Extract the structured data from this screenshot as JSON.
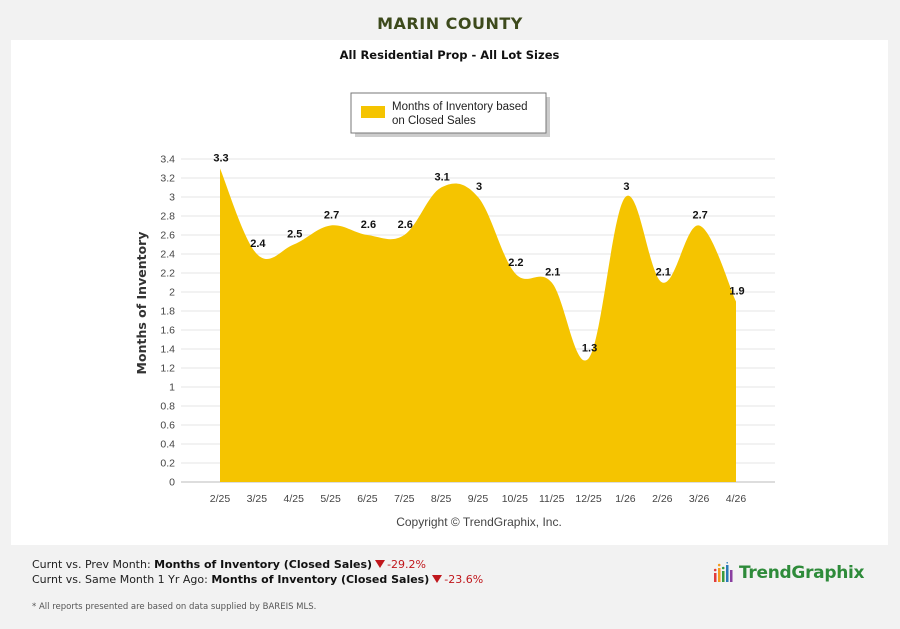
{
  "header": {
    "title": "MARIN COUNTY"
  },
  "colors": {
    "area": "#f5c400",
    "title": "#3d4a1c",
    "down": "#c0171c",
    "brand": "#2e8b3a"
  },
  "chart_data": {
    "type": "area",
    "title": "All Residential Prop - All Lot Sizes",
    "ylabel": "Months of Inventory",
    "xlabel": "",
    "categories": [
      "2/25",
      "3/25",
      "4/25",
      "5/25",
      "6/25",
      "7/25",
      "8/25",
      "9/25",
      "10/25",
      "11/25",
      "12/25",
      "1/26",
      "2/26",
      "3/26",
      "4/26"
    ],
    "series": [
      {
        "name": "Months of Inventory based on Closed Sales",
        "values": [
          3.3,
          2.4,
          2.5,
          2.7,
          2.6,
          2.6,
          3.1,
          3,
          2.2,
          2.1,
          1.3,
          3,
          2.1,
          2.7,
          1.9
        ]
      }
    ],
    "data_labels": [
      "3.3",
      "2.4",
      "2.5",
      "2.7",
      "2.6",
      "2.6",
      "3.1",
      "3",
      "2.2",
      "2.1",
      "1.3",
      "3",
      "2.1",
      "2.7",
      "1.9"
    ],
    "yticks": [
      "0",
      "0.2",
      "0.4",
      "0.6",
      "0.8",
      "1",
      "1.2",
      "1.4",
      "1.6",
      "1.8",
      "2",
      "2.2",
      "2.4",
      "2.6",
      "2.8",
      "3",
      "3.2",
      "3.4"
    ],
    "ylim": [
      0,
      3.4
    ],
    "grid": true,
    "legend_position": "top-center",
    "credit": "Copyright © TrendGraphix, Inc."
  },
  "footer": {
    "prev_month": {
      "label": "Curnt vs. Prev Month: ",
      "metric": "Months of Inventory (Closed Sales)",
      "pct": "-29.2%"
    },
    "year_ago": {
      "label": "Curnt vs. Same Month 1 Yr Ago: ",
      "metric": "Months of Inventory (Closed Sales)",
      "pct": "-23.6%"
    },
    "note": "* All reports presented are based on data supplied by BAREIS MLS."
  },
  "brand": {
    "name": "TrendGraphix",
    "icon": "bar-chart-logo-icon"
  }
}
